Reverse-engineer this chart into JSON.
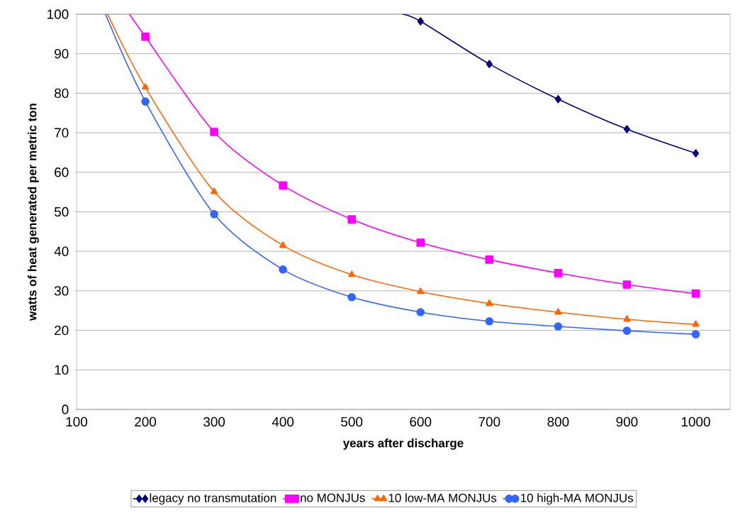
{
  "chart_data": {
    "type": "line",
    "xlabel": "years after discharge",
    "ylabel": "watts of heat generated per metric ton",
    "xlim": [
      100,
      1050
    ],
    "xticks": [
      100,
      200,
      300,
      400,
      500,
      600,
      700,
      800,
      900,
      1000
    ],
    "ylim": [
      0,
      100
    ],
    "yticks": [
      0,
      10,
      20,
      30,
      40,
      50,
      60,
      70,
      80,
      90,
      100
    ],
    "grid": "y",
    "legend": "bottom",
    "line_style": "solid",
    "series": [
      {
        "name": "legacy no transmutation",
        "color": "#000080",
        "marker": "diamond",
        "x": [
          573,
          600,
          700,
          800,
          900,
          1000
        ],
        "values": [
          100,
          98.2,
          87.4,
          78.5,
          70.9,
          64.8
        ]
      },
      {
        "name": "no MONJUs",
        "color": "#ff00ff",
        "marker": "square",
        "x": [
          177,
          200,
          300,
          400,
          500,
          600,
          700,
          800,
          900,
          1000
        ],
        "values": [
          100,
          94.3,
          70.2,
          56.7,
          48.1,
          42.2,
          37.9,
          34.5,
          31.6,
          29.3
        ]
      },
      {
        "name": "10 low-MA MONJUs",
        "color": "#ff6600",
        "marker": "triangle",
        "x": [
          145,
          200,
          300,
          400,
          500,
          600,
          700,
          800,
          900,
          1000
        ],
        "values": [
          100,
          81.5,
          55.1,
          41.5,
          34.1,
          29.8,
          26.8,
          24.6,
          22.8,
          21.5
        ]
      },
      {
        "name": "10 high-MA MONJUs",
        "color": "#3366ff",
        "marker": "circle",
        "x": [
          142,
          200,
          300,
          400,
          500,
          600,
          700,
          800,
          900,
          1000
        ],
        "values": [
          100,
          77.9,
          49.4,
          35.4,
          28.4,
          24.6,
          22.3,
          21.0,
          19.9,
          19.0
        ]
      }
    ]
  }
}
